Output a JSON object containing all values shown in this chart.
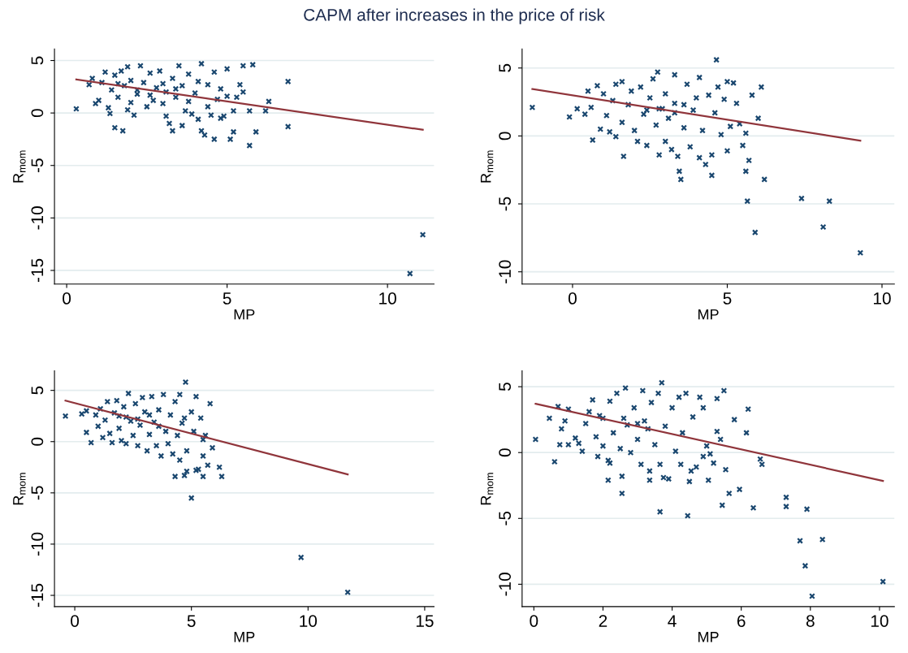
{
  "chart_data": [
    {
      "type": "scatter",
      "title": "CAPM after increases in the price of risk",
      "xlabel": "MP",
      "ylabel": "R$_{mom}$",
      "xlim": [
        -0.38,
        11.45
      ],
      "ylim": [
        -16.3,
        6.1
      ],
      "xticks": [
        0,
        5,
        10
      ],
      "yticks": [
        -15,
        -10,
        -5,
        0,
        5
      ],
      "grid": "y",
      "legend": false,
      "series": [
        {
          "marker": "cross",
          "color": "#1a476f",
          "x": [
            0.3,
            0.7,
            0.8,
            0.9,
            1.0,
            1.1,
            1.2,
            1.3,
            1.35,
            1.4,
            1.5,
            1.5,
            1.6,
            1.7,
            1.75,
            1.8,
            1.9,
            1.9,
            2.0,
            2.1,
            2.2,
            2.3,
            2.4,
            2.5,
            2.6,
            2.7,
            2.8,
            2.9,
            3.0,
            3.1,
            3.1,
            3.2,
            3.3,
            3.3,
            3.4,
            3.5,
            3.6,
            3.6,
            3.7,
            3.8,
            3.9,
            4.0,
            4.1,
            4.1,
            4.2,
            4.2,
            4.3,
            4.4,
            4.4,
            4.5,
            4.6,
            4.6,
            4.7,
            4.8,
            4.8,
            4.9,
            5.0,
            5.0,
            5.1,
            5.2,
            5.2,
            5.3,
            5.4,
            5.5,
            5.5,
            5.7,
            5.7,
            5.8,
            5.9,
            6.2,
            6.3,
            6.9,
            6.9,
            10.7,
            11.1,
            2.2,
            2.6,
            3.0,
            3.4,
            3.8,
            2.0,
            1.6
          ],
          "values": [
            0.4,
            2.7,
            3.3,
            0.9,
            1.2,
            2.9,
            3.9,
            0.5,
            -0.05,
            2.2,
            3.6,
            -1.4,
            1.5,
            4.0,
            -1.7,
            2.6,
            4.4,
            0.3,
            3.1,
            -0.2,
            1.8,
            4.5,
            2.9,
            0.6,
            3.8,
            1.2,
            2.4,
            4.0,
            0.9,
            -0.3,
            2.0,
            -1.0,
            3.3,
            -1.7,
            1.5,
            4.5,
            2.6,
            -1.2,
            0.2,
            3.7,
            -0.1,
            1.9,
            3.0,
            -0.6,
            4.7,
            -1.7,
            -2.1,
            2.7,
            0.6,
            -0.2,
            3.9,
            -2.5,
            1.3,
            -0.5,
            2.3,
            -0.3,
            1.6,
            4.2,
            -2.5,
            -1.8,
            0.2,
            1.5,
            2.7,
            4.5,
            2.0,
            -3.1,
            0.2,
            4.6,
            -1.8,
            0.2,
            1.1,
            3.0,
            -1.3,
            -15.3,
            -11.6,
            2.2,
            1.7,
            2.8,
            2.3,
            1.1,
            1.0,
            2.8
          ]
        },
        {
          "type": "line",
          "color": "#90353b",
          "x": [
            0.3,
            11.1
          ],
          "values": [
            3.2,
            -1.6
          ]
        }
      ]
    },
    {
      "type": "scatter",
      "xlabel": "MP",
      "ylabel": "R$_{mom}$",
      "xlim": [
        -1.63,
        10.4
      ],
      "ylim": [
        -10.9,
        6.4
      ],
      "xticks": [
        0,
        5,
        10
      ],
      "yticks": [
        -10,
        -5,
        0,
        5
      ],
      "grid": "y",
      "legend": false,
      "series": [
        {
          "marker": "cross",
          "color": "#1a476f",
          "x": [
            -1.3,
            -0.1,
            0.15,
            0.4,
            0.5,
            0.6,
            0.65,
            0.8,
            0.9,
            1.0,
            1.1,
            1.2,
            1.3,
            1.4,
            1.4,
            1.6,
            1.6,
            1.65,
            1.8,
            1.9,
            2.0,
            2.1,
            2.2,
            2.3,
            2.4,
            2.5,
            2.6,
            2.7,
            2.75,
            2.8,
            2.9,
            3.0,
            3.0,
            3.1,
            3.2,
            3.3,
            3.3,
            3.4,
            3.45,
            3.5,
            3.6,
            3.7,
            3.8,
            3.9,
            4.0,
            4.1,
            4.1,
            4.2,
            4.3,
            4.4,
            4.5,
            4.5,
            4.6,
            4.65,
            4.7,
            4.8,
            4.9,
            5.0,
            5.0,
            5.1,
            5.2,
            5.3,
            5.4,
            5.5,
            5.6,
            5.6,
            5.65,
            5.7,
            5.8,
            5.9,
            6.0,
            6.1,
            6.2,
            7.4,
            8.1,
            8.3,
            9.3,
            2.8,
            3.3,
            3.6,
            2.4
          ],
          "values": [
            2.1,
            1.4,
            2.0,
            1.6,
            3.3,
            2.1,
            -0.3,
            3.7,
            0.5,
            3.1,
            1.5,
            0.3,
            2.6,
            3.8,
            -0.05,
            4.0,
            1.0,
            -1.5,
            2.3,
            3.3,
            0.4,
            -0.4,
            3.6,
            1.6,
            -0.7,
            2.8,
            4.2,
            0.8,
            4.7,
            -1.4,
            2.0,
            3.1,
            -0.4,
            1.3,
            -1.0,
            4.5,
            2.4,
            -1.5,
            -2.6,
            -3.2,
            0.6,
            3.8,
            -0.8,
            1.9,
            2.8,
            4.3,
            -1.6,
            0.4,
            -2.1,
            3.0,
            -1.4,
            -2.9,
            1.7,
            5.6,
            3.6,
            0.1,
            2.7,
            -1.1,
            4.0,
            0.7,
            3.9,
            2.4,
            0.9,
            -0.7,
            0.2,
            -2.6,
            -4.8,
            -1.8,
            3.0,
            -7.1,
            1.3,
            3.6,
            -3.2,
            -4.6,
            -6.7,
            -4.8,
            -8.6,
            2.0,
            1.7,
            2.3,
            1.9
          ]
        },
        {
          "type": "line",
          "color": "#90353b",
          "x": [
            -1.3,
            9.3
          ],
          "values": [
            3.45,
            -0.35
          ]
        }
      ]
    },
    {
      "type": "scatter",
      "xlabel": "MP",
      "ylabel": "R$_{mom}$",
      "xlim": [
        -0.87,
        15.4
      ],
      "ylim": [
        -16.1,
        6.9
      ],
      "xticks": [
        0,
        5,
        10,
        15
      ],
      "yticks": [
        -15,
        -10,
        -5,
        0,
        5
      ],
      "grid": "y",
      "legend": false,
      "series": [
        {
          "marker": "cross",
          "color": "#1a476f",
          "x": [
            -0.4,
            0.3,
            0.5,
            0.5,
            0.7,
            0.9,
            1.0,
            1.1,
            1.2,
            1.3,
            1.4,
            1.5,
            1.6,
            1.7,
            1.8,
            1.9,
            2.0,
            2.1,
            2.2,
            2.3,
            2.4,
            2.5,
            2.6,
            2.7,
            2.8,
            2.9,
            3.0,
            3.1,
            3.2,
            3.3,
            3.4,
            3.5,
            3.6,
            3.7,
            3.8,
            3.9,
            4.0,
            4.1,
            4.2,
            4.3,
            4.3,
            4.4,
            4.5,
            4.5,
            4.6,
            4.7,
            4.7,
            4.75,
            4.8,
            4.8,
            5.0,
            5.0,
            5.1,
            5.2,
            5.2,
            5.3,
            5.4,
            5.5,
            5.5,
            5.5,
            5.6,
            5.7,
            5.8,
            5.9,
            6.2,
            6.3,
            9.7,
            11.7,
            2.2,
            2.7,
            3.2,
            3.6,
            1.9
          ],
          "values": [
            2.5,
            2.7,
            3.0,
            0.9,
            -0.1,
            2.6,
            1.5,
            3.2,
            0.4,
            2.1,
            3.9,
            0.8,
            -0.1,
            2.8,
            4.0,
            1.3,
            0.1,
            3.4,
            -0.2,
            4.7,
            2.0,
            0.6,
            3.7,
            -0.4,
            1.6,
            4.3,
            2.9,
            -0.9,
            0.7,
            4.4,
            1.9,
            -0.4,
            3.1,
            -1.4,
            4.6,
            1.0,
            -0.2,
            2.6,
            -1.2,
            3.9,
            -3.4,
            0.6,
            4.6,
            -1.8,
            1.8,
            -3.3,
            2.3,
            5.8,
            -0.9,
            -2.9,
            -5.5,
            2.9,
            1.0,
            4.4,
            -2.8,
            -2.7,
            2.3,
            -1.4,
            -3.4,
            0.2,
            0.6,
            -2.3,
            3.7,
            -0.6,
            -2.5,
            -3.4,
            -11.3,
            -14.7,
            2.4,
            2.2,
            2.6,
            1.5,
            2.5
          ]
        },
        {
          "type": "line",
          "color": "#90353b",
          "x": [
            -0.4,
            11.7
          ],
          "values": [
            4.0,
            -3.2
          ]
        }
      ]
    },
    {
      "type": "scatter",
      "xlabel": "MP",
      "ylabel": "R$_{mom}$",
      "xlim": [
        -0.34,
        10.43
      ],
      "ylim": [
        -11.7,
        6.2
      ],
      "xticks": [
        0,
        2,
        4,
        6,
        8,
        10
      ],
      "yticks": [
        -10,
        -5,
        0,
        5
      ],
      "grid": "y",
      "legend": false,
      "series": [
        {
          "marker": "cross",
          "color": "#1a476f",
          "x": [
            0.05,
            0.45,
            0.6,
            0.7,
            0.75,
            0.8,
            0.9,
            1.0,
            1.0,
            1.2,
            1.3,
            1.4,
            1.5,
            1.6,
            1.7,
            1.8,
            1.85,
            1.9,
            2.0,
            2.15,
            2.15,
            2.2,
            2.2,
            2.3,
            2.4,
            2.5,
            2.55,
            2.55,
            2.65,
            2.7,
            2.8,
            2.9,
            3.0,
            3.1,
            3.15,
            3.2,
            3.35,
            3.35,
            3.4,
            3.5,
            3.6,
            3.65,
            3.65,
            3.7,
            3.75,
            3.8,
            3.9,
            4.0,
            4.1,
            4.2,
            4.25,
            4.3,
            4.4,
            4.45,
            4.5,
            4.55,
            4.6,
            4.7,
            4.8,
            4.9,
            4.9,
            5.0,
            5.05,
            5.1,
            5.2,
            5.3,
            5.3,
            5.4,
            5.45,
            5.5,
            5.55,
            5.65,
            5.8,
            5.95,
            6.2,
            6.15,
            6.35,
            6.55,
            6.6,
            7.3,
            7.3,
            7.7,
            7.85,
            7.9,
            8.05,
            8.35,
            10.1,
            2.6,
            3.0,
            3.3,
            2.0
          ],
          "values": [
            1.0,
            2.6,
            -0.7,
            3.5,
            0.6,
            1.8,
            2.4,
            0.6,
            3.3,
            1.1,
            0.7,
            0.1,
            2.2,
            3.1,
            4.0,
            1.2,
            -0.3,
            2.8,
            0.5,
            -0.6,
            -2.1,
            -0.8,
            3.9,
            1.5,
            4.5,
            0.3,
            -1.8,
            -3.1,
            4.9,
            2.1,
            0.0,
            3.4,
            1.0,
            -0.9,
            4.7,
            2.4,
            -1.4,
            -2.1,
            3.8,
            0.6,
            4.5,
            -0.9,
            -4.5,
            5.3,
            -1.9,
            2.0,
            -2.0,
            3.4,
            0.1,
            4.2,
            -0.9,
            1.5,
            4.5,
            -4.8,
            -2.2,
            -1.4,
            2.7,
            -1.1,
            4.2,
            3.4,
            -0.3,
            0.5,
            -2.1,
            -0.1,
            -0.8,
            1.6,
            4.1,
            1.0,
            -4.0,
            4.7,
            -1.3,
            -3.1,
            2.5,
            -2.8,
            3.3,
            1.5,
            -4.2,
            -0.5,
            -0.9,
            -3.4,
            -4.1,
            -6.7,
            -8.6,
            -4.3,
            -10.9,
            -6.6,
            -9.8,
            2.6,
            2.2,
            1.8,
            2.6
          ]
        },
        {
          "type": "line",
          "color": "#90353b",
          "x": [
            0.05,
            10.1
          ],
          "values": [
            3.7,
            -2.15
          ]
        }
      ]
    }
  ]
}
